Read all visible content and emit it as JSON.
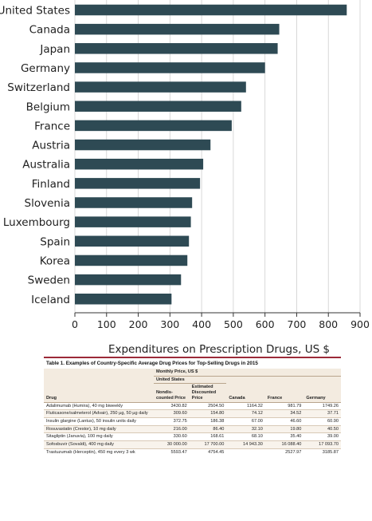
{
  "chart_data": {
    "type": "bar",
    "orientation": "horizontal",
    "categories": [
      "United States",
      "Canada",
      "Japan",
      "Germany",
      "Switzerland",
      "Belgium",
      "France",
      "Austria",
      "Australia",
      "Finland",
      "Slovenia",
      "Luxembourg",
      "Spain",
      "Korea",
      "Sweden",
      "Iceland"
    ],
    "values": [
      858,
      645,
      640,
      600,
      540,
      525,
      495,
      428,
      405,
      395,
      370,
      366,
      360,
      355,
      335,
      305
    ],
    "xlabel": "Expenditures on Prescription Drugs, US $",
    "xlim": [
      0,
      900
    ],
    "xticks": [
      "0",
      "100",
      "200",
      "300",
      "400",
      "500",
      "600",
      "700",
      "800",
      "900"
    ],
    "grid": true,
    "bar_color": "#2e4a54"
  },
  "table": {
    "title": "Table 1. Examples of Country-Specific Average Drug Prices for Top-Selling Drugs in 2015",
    "header": {
      "drug": "Drug",
      "monthly_price": "Monthly Price, US $",
      "united_states": "United States",
      "nondiscounted": "Nondis- counted Price",
      "discounted": "Estimated Discounted Price",
      "canada": "Canada",
      "france": "France",
      "germany": "Germany"
    },
    "rows": [
      {
        "drug": "Adalimumab (Humira), 40 mg biweekly",
        "nondiscounted": "3430.82",
        "discounted": "2504.50",
        "canada": "1164.32",
        "france": "981.79",
        "germany": "1749.26"
      },
      {
        "drug": "Fluticasone/salmeterol (Advair), 250 µg, 50 µg daily",
        "nondiscounted": "309.60",
        "discounted": "154.80",
        "canada": "74.12",
        "france": "34.52",
        "germany": "37.71"
      },
      {
        "drug": "Insulin glargine (Lantus), 50 insulin units daily",
        "nondiscounted": "372.75",
        "discounted": "186.38",
        "canada": "67.00",
        "france": "46.60",
        "germany": "60.90"
      },
      {
        "drug": "Rosuvastatin (Crestor), 10 mg daily",
        "nondiscounted": "216.00",
        "discounted": "86.40",
        "canada": "32.10",
        "france": "19.80",
        "germany": "40.50"
      },
      {
        "drug": "Sitagliptin (Januvia), 100 mg daily",
        "nondiscounted": "330.60",
        "discounted": "168.61",
        "canada": "68.10",
        "france": "35.40",
        "germany": "39.00"
      },
      {
        "drug": "Sofosbuvir (Sovaldi), 400 mg daily",
        "nondiscounted": "30 000.00",
        "discounted": "17 700.00",
        "canada": "14 943.30",
        "france": "16 088.40",
        "germany": "17 093.70"
      },
      {
        "drug": "Trastuzumab (Herceptin), 450 mg every 3 wk",
        "nondiscounted": "5593.47",
        "discounted": "4754.45",
        "canada": "",
        "france": "2527.97",
        "germany": "3185.87"
      }
    ],
    "accent_color": "#9c2a38",
    "header_bg": "#f3ebe0"
  }
}
